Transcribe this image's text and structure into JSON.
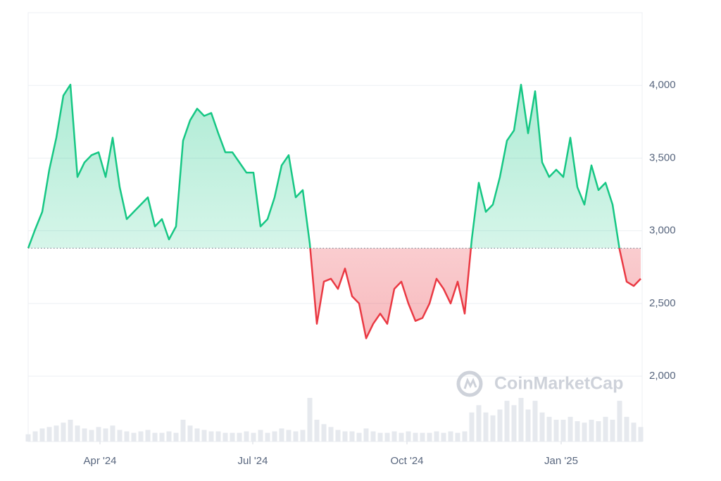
{
  "chart_data": {
    "type": "line",
    "values": [
      2880,
      3010,
      3130,
      3420,
      3640,
      3930,
      4005,
      3370,
      3470,
      3520,
      3540,
      3370,
      3640,
      3300,
      3080,
      3130,
      3180,
      3230,
      3030,
      3080,
      2940,
      3030,
      3620,
      3760,
      3840,
      3790,
      3810,
      3670,
      3540,
      3540,
      3470,
      3400,
      3400,
      3030,
      3080,
      3230,
      3450,
      3520,
      3230,
      3280,
      2910,
      2360,
      2650,
      2670,
      2600,
      2740,
      2550,
      2500,
      2260,
      2360,
      2430,
      2360,
      2600,
      2650,
      2500,
      2380,
      2400,
      2500,
      2670,
      2600,
      2500,
      2650,
      2430,
      2940,
      3330,
      3130,
      3180,
      3370,
      3620,
      3690,
      4005,
      3670,
      3960,
      3470,
      3370,
      3420,
      3370,
      3640,
      3300,
      3180,
      3450,
      3280,
      3330,
      3180,
      2870,
      2650,
      2620,
      2670
    ],
    "volume": [
      10,
      14,
      18,
      20,
      22,
      26,
      30,
      22,
      18,
      16,
      20,
      18,
      22,
      16,
      14,
      12,
      14,
      16,
      12,
      12,
      14,
      12,
      30,
      22,
      18,
      16,
      14,
      14,
      12,
      12,
      12,
      14,
      12,
      16,
      12,
      14,
      18,
      16,
      14,
      16,
      60,
      30,
      24,
      20,
      16,
      14,
      14,
      12,
      18,
      14,
      12,
      12,
      14,
      12,
      14,
      12,
      12,
      12,
      14,
      12,
      14,
      12,
      14,
      40,
      50,
      40,
      36,
      44,
      56,
      50,
      60,
      44,
      56,
      40,
      34,
      30,
      30,
      34,
      28,
      26,
      30,
      28,
      34,
      30,
      56,
      34,
      26,
      20
    ],
    "baseline": 2880,
    "up_color": "#16c784",
    "down_color": "#ea3943",
    "xlim": [
      0,
      87
    ],
    "xticks": [
      {
        "value": 10.2,
        "label": "Apr '24"
      },
      {
        "value": 31.9,
        "label": "Jul '24"
      },
      {
        "value": 53.8,
        "label": "Oct '24"
      },
      {
        "value": 75.7,
        "label": "Jan '25"
      }
    ],
    "ylim": [
      1550,
      4500
    ],
    "yticks": [
      {
        "value": 2000,
        "label": "2,000"
      },
      {
        "value": 2500,
        "label": "2,500"
      },
      {
        "value": 3000,
        "label": "3,000"
      },
      {
        "value": 3500,
        "label": "3,500"
      },
      {
        "value": 4000,
        "label": "4,000"
      }
    ],
    "grid": true,
    "watermark": "CoinMarketCap"
  }
}
